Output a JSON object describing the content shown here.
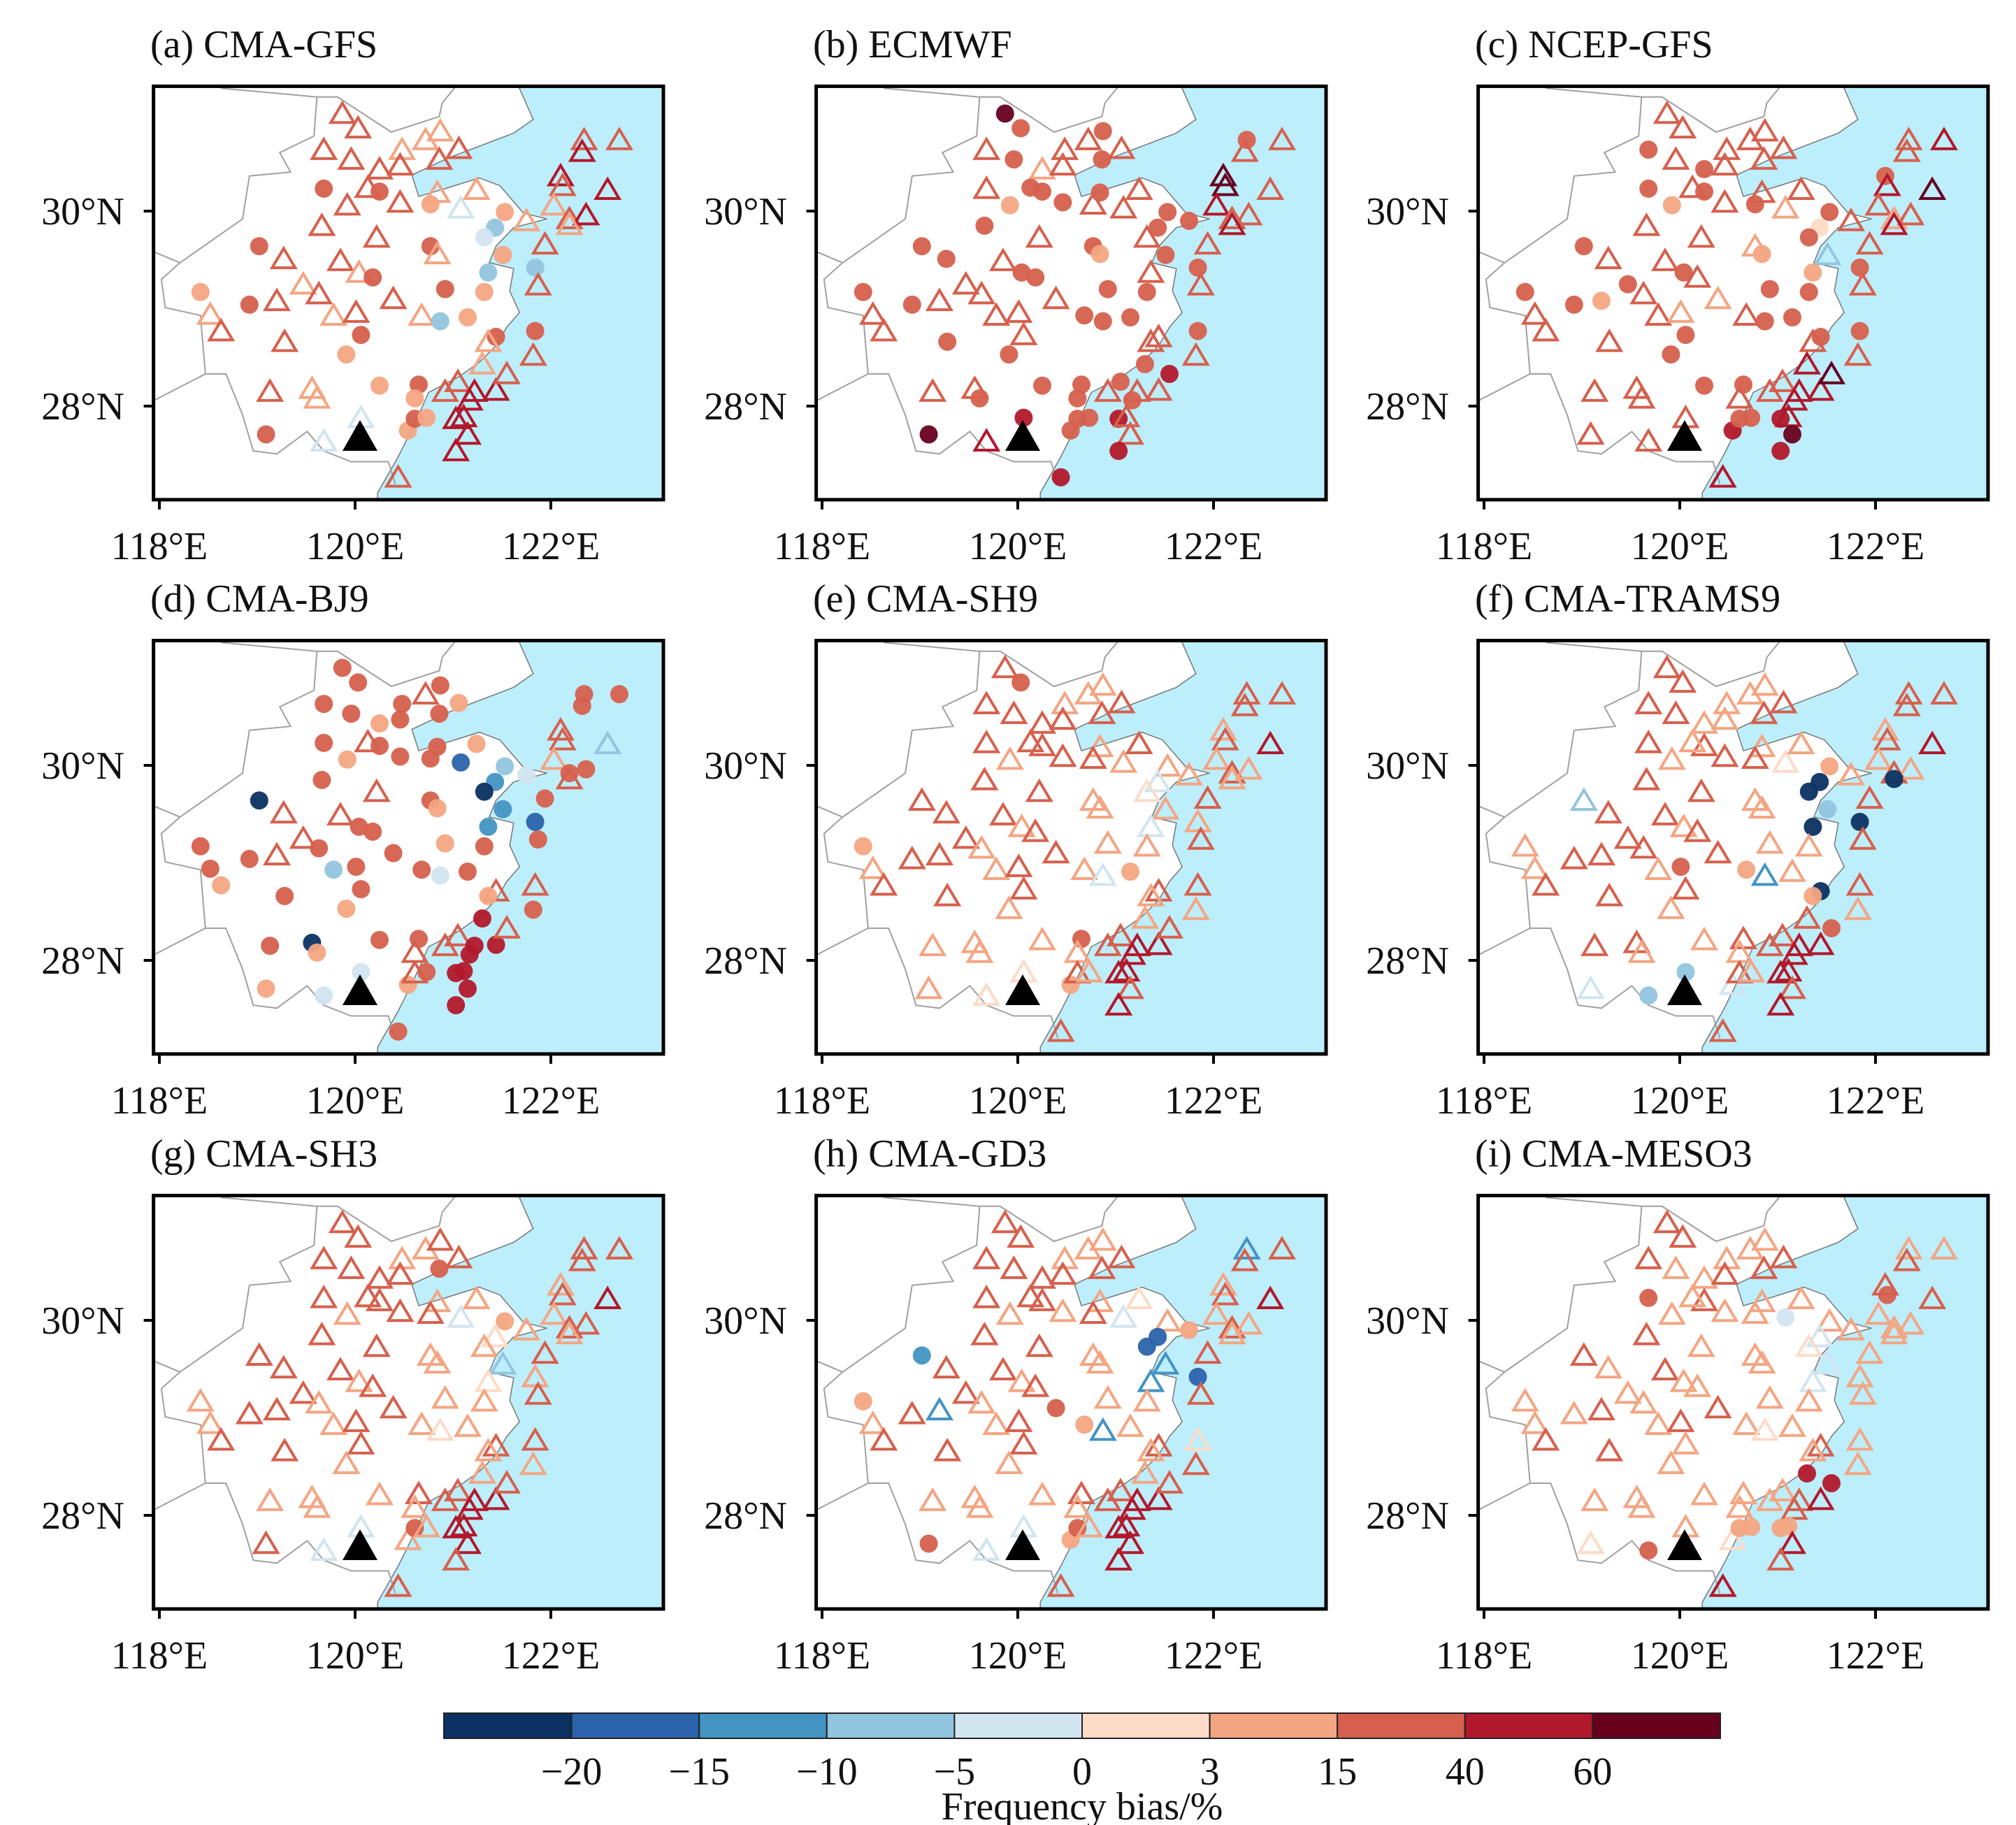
{
  "figure": {
    "colorbar": {
      "title": "Frequency bias/%",
      "tick_labels": [
        "−20",
        "−15",
        "−10",
        "−5",
        "0",
        "3",
        "15",
        "40",
        "60"
      ],
      "colors": [
        "#0b3162",
        "#2a63ab",
        "#4393c3",
        "#92c5de",
        "#d1e5f0",
        "#fddbc7",
        "#f4a582",
        "#d6604d",
        "#b2182b",
        "#67001f"
      ]
    },
    "axes": {
      "lon_ticks": [
        118,
        120,
        122
      ],
      "lon_labels": [
        "118°E",
        "120°E",
        "122°E"
      ],
      "lat_ticks": [
        30,
        28
      ],
      "lat_labels": [
        "30°N",
        "28°N"
      ],
      "lon_range": [
        117.94,
        123.15
      ],
      "lat_range": [
        27.04,
        31.28
      ]
    },
    "sea_color": "#bdeefc",
    "boundary_color": "#a0a0a0",
    "marker_legend": {
      "t": "triangle-open",
      "c": "circle-filled"
    },
    "reference_site": {
      "lon": 120.05,
      "lat": 27.67,
      "symbol": "black-triangle"
    },
    "sea_polygon": [
      [
        121.67,
        31.28
      ],
      [
        121.82,
        30.94
      ],
      [
        121.62,
        30.8
      ],
      [
        120.94,
        30.54
      ],
      [
        120.58,
        30.37
      ],
      [
        120.65,
        30.15
      ],
      [
        120.92,
        30.23
      ],
      [
        121.27,
        30.34
      ],
      [
        121.48,
        30.26
      ],
      [
        121.72,
        29.98
      ],
      [
        121.96,
        29.92
      ],
      [
        121.62,
        29.83
      ],
      [
        121.44,
        29.64
      ],
      [
        121.37,
        29.47
      ],
      [
        121.62,
        29.41
      ],
      [
        121.58,
        29.18
      ],
      [
        121.68,
        28.96
      ],
      [
        121.55,
        28.81
      ],
      [
        121.44,
        28.62
      ],
      [
        121.27,
        28.45
      ],
      [
        121.06,
        28.3
      ],
      [
        120.75,
        28.14
      ],
      [
        120.65,
        27.91
      ],
      [
        120.54,
        27.68
      ],
      [
        120.44,
        27.48
      ],
      [
        120.23,
        27.11
      ],
      [
        120.23,
        27.0
      ],
      [
        123.3,
        27.0
      ],
      [
        123.3,
        31.4
      ],
      [
        121.67,
        31.4
      ]
    ],
    "boundaries": [
      [
        [
          118.63,
          31.26
        ],
        [
          119.61,
          31.17
        ],
        [
          119.58,
          30.77
        ],
        [
          119.23,
          30.6
        ],
        [
          119.34,
          30.4
        ],
        [
          118.92,
          30.36
        ],
        [
          118.85,
          29.92
        ],
        [
          118.21,
          29.47
        ],
        [
          118.02,
          29.3
        ],
        [
          118.06,
          29.01
        ],
        [
          118.42,
          28.93
        ],
        [
          118.47,
          28.33
        ],
        [
          118.68,
          28.33
        ],
        [
          118.85,
          27.91
        ],
        [
          118.96,
          27.54
        ],
        [
          119.2,
          27.51
        ],
        [
          119.51,
          27.74
        ],
        [
          119.68,
          27.54
        ],
        [
          119.96,
          27.43
        ],
        [
          120.34,
          27.43
        ],
        [
          120.41,
          27.2
        ]
      ],
      [
        [
          119.61,
          31.17
        ],
        [
          119.82,
          31.17
        ],
        [
          120.37,
          30.81
        ],
        [
          120.86,
          30.97
        ],
        [
          120.89,
          31.11
        ],
        [
          121.03,
          31.28
        ]
      ],
      [
        [
          117.95,
          29.58
        ],
        [
          118.21,
          29.47
        ]
      ],
      [
        [
          117.95,
          28.06
        ],
        [
          118.47,
          28.33
        ]
      ]
    ],
    "stations": [
      [
        119.87,
        31.0
      ],
      [
        120.03,
        30.85
      ],
      [
        119.68,
        30.63
      ],
      [
        119.96,
        30.53
      ],
      [
        120.48,
        30.63
      ],
      [
        120.72,
        30.73
      ],
      [
        120.87,
        30.82
      ],
      [
        121.06,
        30.64
      ],
      [
        120.25,
        30.43
      ],
      [
        120.46,
        30.47
      ],
      [
        120.86,
        30.53
      ],
      [
        119.68,
        30.23
      ],
      [
        120.25,
        30.2
      ],
      [
        120.13,
        30.24
      ],
      [
        120.84,
        30.19
      ],
      [
        119.92,
        30.06
      ],
      [
        120.46,
        30.09
      ],
      [
        120.77,
        30.07
      ],
      [
        121.08,
        30.03
      ],
      [
        121.24,
        30.22
      ],
      [
        119.66,
        29.85
      ],
      [
        120.22,
        29.73
      ],
      [
        121.53,
        29.99
      ],
      [
        121.75,
        29.9
      ],
      [
        121.43,
        29.83
      ],
      [
        121.32,
        29.73
      ],
      [
        119.02,
        29.64
      ],
      [
        119.27,
        29.51
      ],
      [
        119.85,
        29.49
      ],
      [
        120.04,
        29.37
      ],
      [
        120.18,
        29.32
      ],
      [
        120.77,
        29.64
      ],
      [
        120.84,
        29.56
      ],
      [
        121.51,
        29.55
      ],
      [
        121.36,
        29.37
      ],
      [
        121.84,
        29.42
      ],
      [
        118.42,
        29.17
      ],
      [
        119.47,
        29.25
      ],
      [
        119.63,
        29.15
      ],
      [
        120.39,
        29.1
      ],
      [
        120.92,
        29.2
      ],
      [
        121.32,
        29.17
      ],
      [
        118.92,
        29.04
      ],
      [
        119.2,
        29.08
      ],
      [
        118.52,
        28.94
      ],
      [
        118.63,
        28.77
      ],
      [
        119.78,
        28.93
      ],
      [
        120.01,
        28.96
      ],
      [
        120.68,
        28.93
      ],
      [
        120.87,
        28.87
      ],
      [
        121.15,
        28.91
      ],
      [
        120.06,
        28.73
      ],
      [
        119.28,
        28.66
      ],
      [
        119.91,
        28.53
      ],
      [
        121.84,
        28.77
      ],
      [
        121.44,
        28.71
      ],
      [
        121.36,
        28.66
      ],
      [
        121.82,
        28.52
      ],
      [
        119.13,
        28.15
      ],
      [
        119.56,
        28.18
      ],
      [
        119.61,
        28.08
      ],
      [
        120.25,
        28.21
      ],
      [
        120.65,
        28.22
      ],
      [
        120.61,
        28.08
      ],
      [
        120.92,
        28.15
      ],
      [
        121.05,
        28.25
      ],
      [
        121.22,
        28.15
      ],
      [
        121.17,
        28.06
      ],
      [
        121.44,
        28.16
      ],
      [
        121.3,
        28.43
      ],
      [
        121.55,
        28.33
      ],
      [
        120.06,
        27.88
      ],
      [
        119.68,
        27.64
      ],
      [
        119.09,
        27.71
      ],
      [
        120.54,
        27.75
      ],
      [
        120.61,
        27.87
      ],
      [
        120.73,
        27.88
      ],
      [
        121.03,
        27.87
      ],
      [
        121.11,
        27.89
      ],
      [
        121.15,
        27.71
      ],
      [
        121.03,
        27.54
      ],
      [
        120.44,
        27.27
      ],
      [
        122.1,
        30.36
      ],
      [
        122.12,
        30.26
      ],
      [
        122.03,
        30.06
      ],
      [
        122.19,
        29.92
      ],
      [
        122.36,
        29.96
      ],
      [
        121.94,
        29.66
      ],
      [
        121.87,
        29.24
      ],
      [
        122.34,
        30.73
      ],
      [
        122.32,
        30.61
      ],
      [
        122.7,
        30.73
      ],
      [
        122.58,
        30.22
      ],
      [
        122.19,
        29.86
      ]
    ],
    "panels": [
      {
        "title": "(a) CMA-GFS",
        "classes": "7777666777777767764677663477767766336677767767676367767767766676778886744767688887876787778786",
        "shapes": "tttttttttttccttttcttttctccctttcctcccctttcccttttttccctccctttttccctttttttttccccttttttttttttttttttttttct"
      },
      {
        "title": "(b) ECMWF",
        "classes": "9777777767777776777777777777777767777777777777777777777777777777777777888977787788998777777778878 7",
        "shapes": "cctcttctttctccccctttctccctcctccccctcctttccctttttccctccctttttcccctctctccctcccccttcctttttttcttttct"
      },
      {
        "title": "(c) NCEP-GFS",
        "classes": "7777777777777776776777775777777663677776777677767777777777777777778888977787788988787677777898 9",
        "shapes": "ttctttttcttccttctcttttctcccttcttctccccttcccctttttccctccctttttcctttttttttttcccctcctctttttttttttcc"
      },
      {
        "title": "(d) CMA-BJ9",
        "classes": "7777777667777776771677342007777762217777677776377477767767706777778888744667788887776777777737",
        "shapes": "ccccctccccccctccccccctcccccttcccccccctccccctccccccccccttccccccctttcccctcccctcccccctttccccccct"
      },
      {
        "title": "(e) CMA-SH9",
        "classes": "7777666777777766776777664577767666466767667767676467767766666676778886755667688787676767777786",
        "shapes": "tcttttttttttttttttttttttttttttttttttctttttttttttttctttttttttttctttttttttttcttttttttttttttttttttc"
      },
      {
        "title": "(f) CMA-TRAMS9",
        "classes": "7777666766777666775677660037767663006777667767676267767066776676778887733447688787676767777780",
        "shapes": "ttttttttttttttttttttttctcctttttttccctttttttttttccttttttcctttttttttttttcccttttttttttttttttttttcc"
      },
      {
        "title": "(g) CMA-SH3",
        "classes": "7777667777777766774677665677767663566767667767676567767766666676778886744767688877676777777786",
        "shapes": "ttttttttttctttttttttttcttttttttttttttttttttttttttttttttttttttttttttttttttttctttttttttttttttttttttt"
      },
      {
        "title": "(h) CMA-GD3",
        "classes": "7777666777777766674577661127767662216767667267676267765767666676778886744767688887676767727786",
        "shapes": "tttttttttttttttttttttttccccttttttttccttcttttttttcttttttttttttttttttttttttcccttttttttttttttttttcc"
      },
      {
        "title": "(i) CMA-MESO3",
        "classes": "7776666767777666664676664576766664466667666767676566766766666666667788867556666878776666667 6766 6",
        "shapes": "tttttttttttcttttttcttttttttttttttttttttttttttttttttttttttttttttttttttcctcttccccttttctttttttttttttc"
      }
    ]
  }
}
